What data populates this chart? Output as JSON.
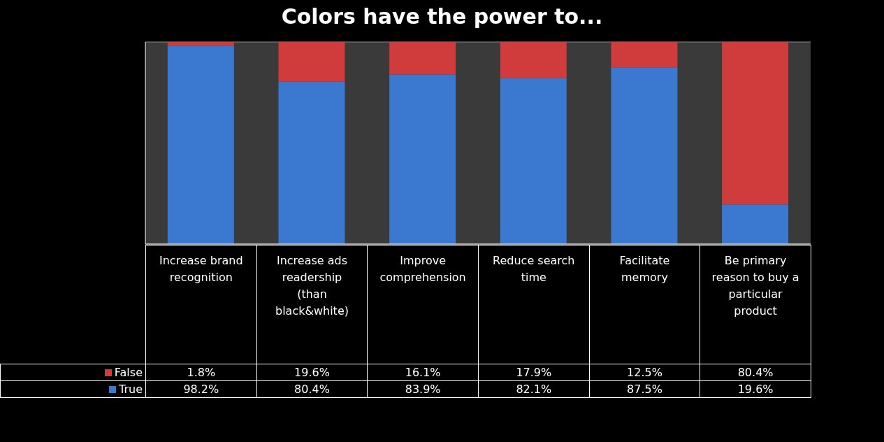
{
  "chart_data": {
    "type": "bar",
    "title": "Colors have the power to...",
    "stacked": true,
    "categories": [
      "Increase brand recognition",
      "Increase ads readership (than black&white)",
      "Improve comprehension",
      "Reduce search time",
      "Facilitate memory",
      "Be primary reason to buy a particular product"
    ],
    "series": [
      {
        "name": "True",
        "color": "#3b78d0",
        "values": [
          98.2,
          80.4,
          83.9,
          82.1,
          87.5,
          19.6
        ],
        "value_labels": [
          "98.2%",
          "80.4%",
          "83.9%",
          "82.1%",
          "87.5%",
          "19.6%"
        ]
      },
      {
        "name": "False",
        "color": "#d03b3b",
        "values": [
          1.8,
          19.6,
          16.1,
          17.9,
          12.5,
          80.4
        ],
        "value_labels": [
          "1.8%",
          "19.6%",
          "16.1%",
          "17.9%",
          "12.5%",
          "80.4%"
        ]
      }
    ],
    "grid": "y",
    "tick_labels": "x",
    "legend": "bottom left"
  }
}
